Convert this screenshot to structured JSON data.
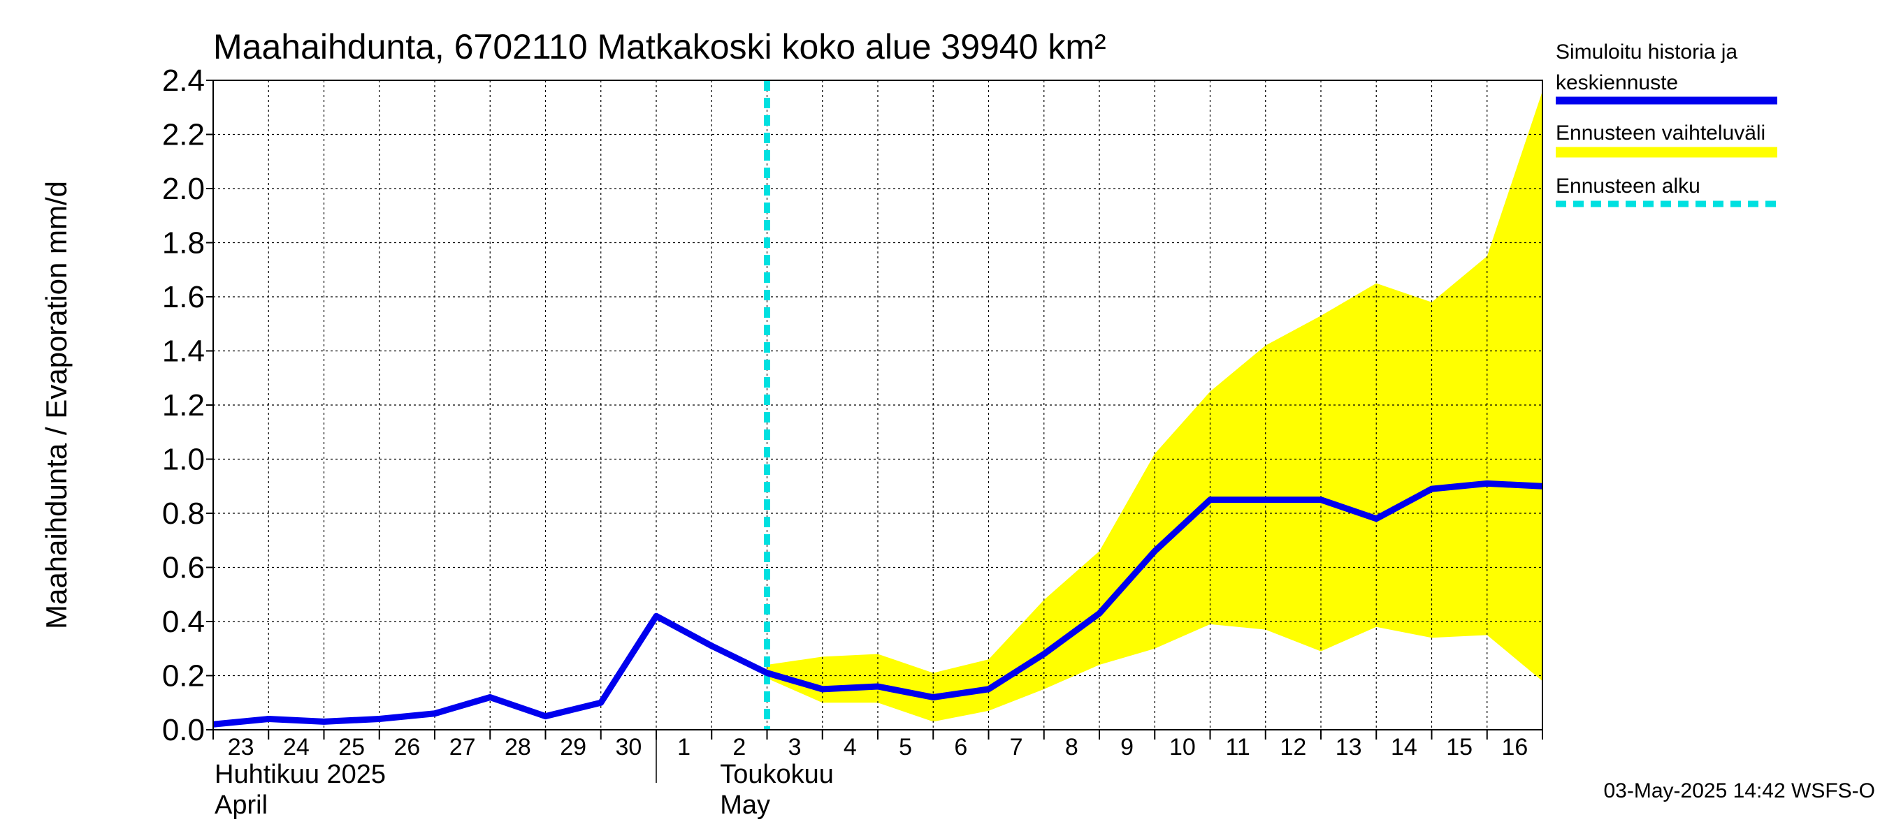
{
  "chart_data": {
    "type": "line",
    "title": "Maahaihdunta, 6702110 Matkakoski koko alue 39940 km²",
    "ylabel": "Maahaihdunta / Evaporation   mm/d",
    "ylim": [
      0,
      2.4
    ],
    "yticks": [
      "0.0",
      "0.2",
      "0.4",
      "0.6",
      "0.8",
      "1.0",
      "1.2",
      "1.4",
      "1.6",
      "1.8",
      "2.0",
      "2.2",
      "2.4"
    ],
    "grid": true,
    "x_day_labels": [
      "23",
      "24",
      "25",
      "26",
      "27",
      "28",
      "29",
      "30",
      "1",
      "2",
      "3",
      "4",
      "5",
      "6",
      "7",
      "8",
      "9",
      "10",
      "11",
      "12",
      "13",
      "14",
      "15",
      "16"
    ],
    "month_labels": [
      {
        "fi": "Huhtikuu  2025",
        "en": "April"
      },
      {
        "fi": "Toukokuu",
        "en": "May"
      }
    ],
    "forecast_start_label": "3",
    "series": [
      {
        "name": "Simuloitu historia ja keskiennuste",
        "color": "#0000ee",
        "x": [
          "2025-04-23",
          "2025-04-24",
          "2025-04-25",
          "2025-04-26",
          "2025-04-27",
          "2025-04-28",
          "2025-04-29",
          "2025-04-30",
          "2025-05-01",
          "2025-05-02",
          "2025-05-03",
          "2025-05-04",
          "2025-05-05",
          "2025-05-06",
          "2025-05-07",
          "2025-05-08",
          "2025-05-09",
          "2025-05-10",
          "2025-05-11",
          "2025-05-12",
          "2025-05-13",
          "2025-05-14",
          "2025-05-15",
          "2025-05-16",
          "2025-05-17"
        ],
        "values": [
          0.02,
          0.04,
          0.03,
          0.04,
          0.06,
          0.12,
          0.05,
          0.1,
          0.42,
          0.31,
          0.21,
          0.15,
          0.16,
          0.12,
          0.15,
          0.28,
          0.43,
          0.66,
          0.85,
          0.85,
          0.85,
          0.78,
          0.89,
          0.91,
          0.9
        ]
      },
      {
        "name": "Ennusteen vaihteluväli",
        "color": "#ffff00",
        "x": [
          "2025-05-03",
          "2025-05-04",
          "2025-05-05",
          "2025-05-06",
          "2025-05-07",
          "2025-05-08",
          "2025-05-09",
          "2025-05-10",
          "2025-05-11",
          "2025-05-12",
          "2025-05-13",
          "2025-05-14",
          "2025-05-15",
          "2025-05-16",
          "2025-05-17"
        ],
        "lower": [
          0.19,
          0.1,
          0.1,
          0.03,
          0.07,
          0.15,
          0.24,
          0.3,
          0.39,
          0.37,
          0.29,
          0.38,
          0.34,
          0.35,
          0.18
        ],
        "upper": [
          0.24,
          0.27,
          0.28,
          0.21,
          0.26,
          0.48,
          0.66,
          1.02,
          1.25,
          1.42,
          1.53,
          1.65,
          1.58,
          1.75,
          2.36
        ]
      },
      {
        "name": "Ennusteen alku",
        "color": "#00e0e0",
        "x": [
          "2025-05-03"
        ]
      }
    ],
    "legend_position": "right"
  },
  "footer": {
    "timestamp": "03-May-2025 14:42 WSFS-O"
  }
}
